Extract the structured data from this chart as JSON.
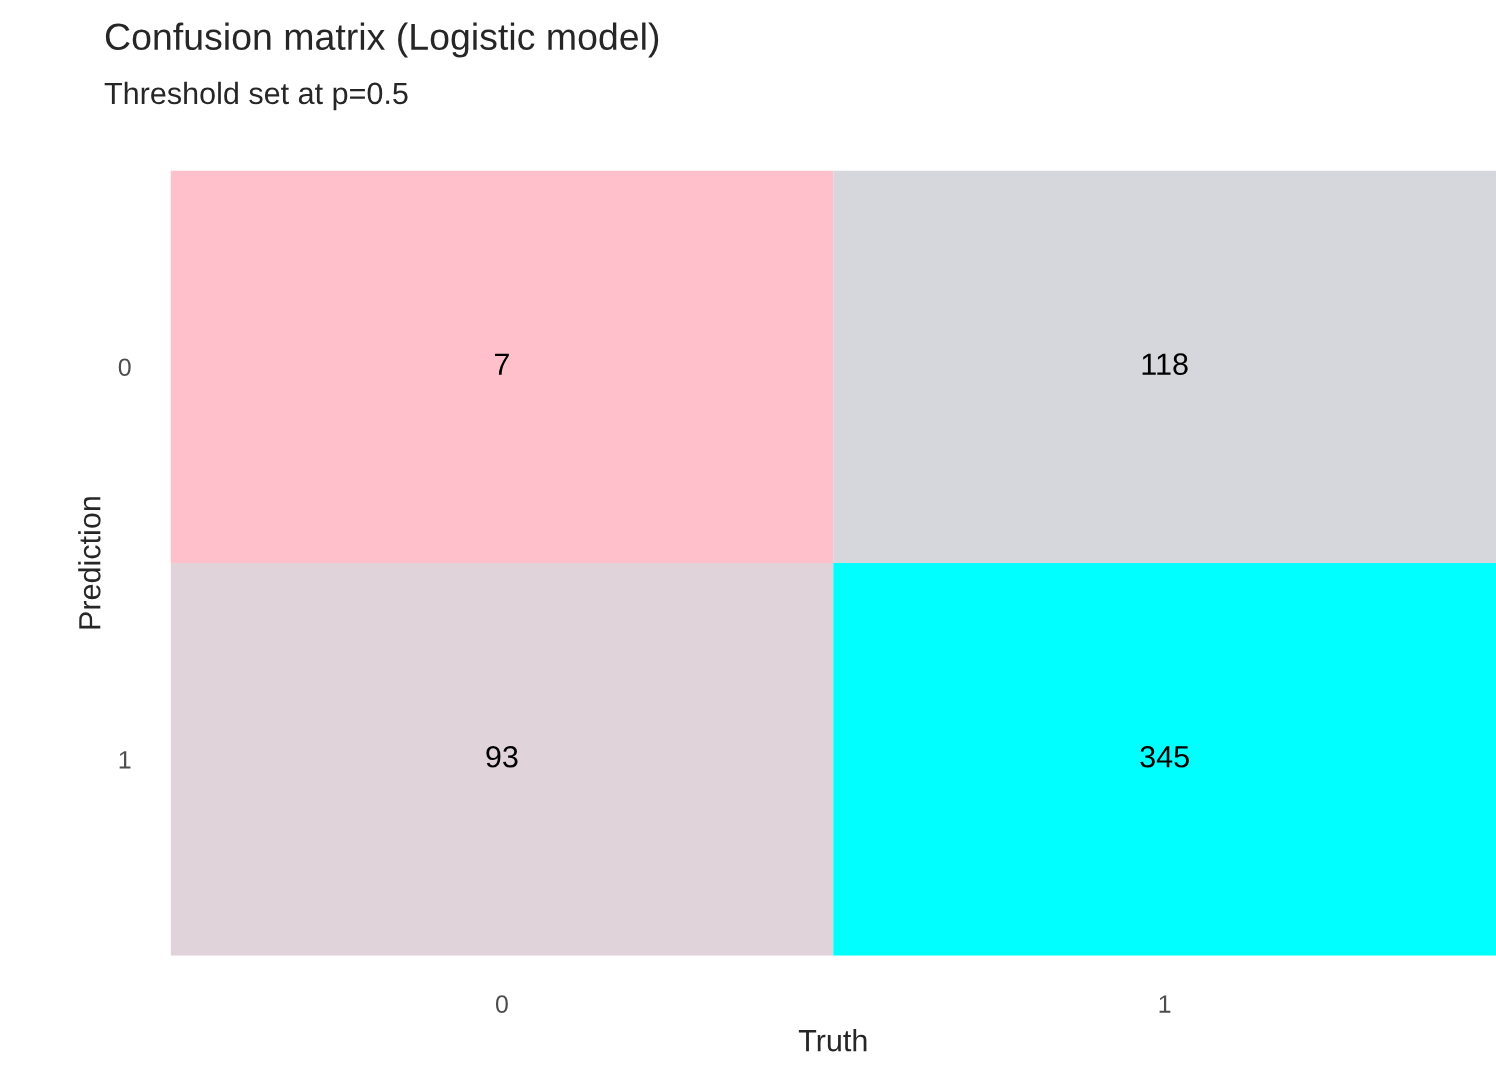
{
  "chart_data": {
    "type": "heatmap",
    "title": "Confusion matrix (Logistic model)",
    "subtitle": "Threshold set at p=0.5",
    "xlabel": "Truth",
    "ylabel": "Prediction",
    "categories": [
      "0",
      "1"
    ],
    "y_categories": [
      "0",
      "1"
    ],
    "cells": [
      [
        7,
        118
      ],
      [
        93,
        345
      ]
    ],
    "colors": [
      [
        "#ffc0cb",
        "#d6d7dc"
      ],
      [
        "#e0d3da",
        "#00ffff"
      ]
    ],
    "data_labels": true,
    "grid": false,
    "legend": false
  }
}
